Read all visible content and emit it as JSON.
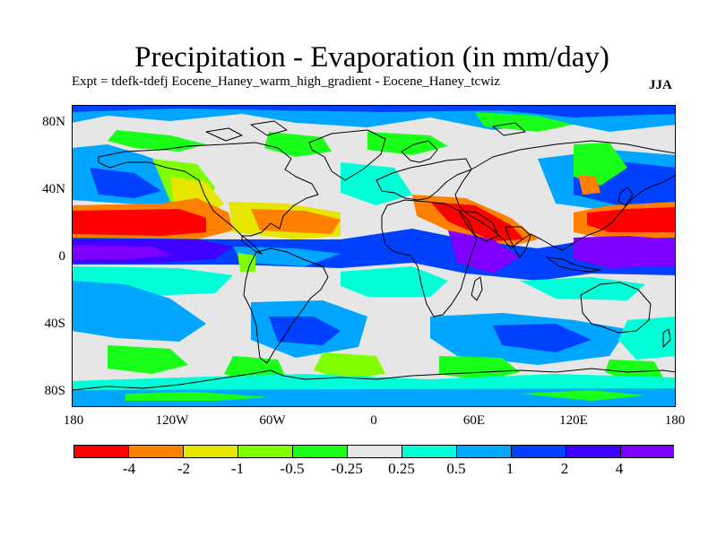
{
  "title": "Precipitation - Evaporation (in mm/day)",
  "subtitle": "Expt = tdefk-tdefj Eocene_Haney_warm_high_gradient - Eocene_Haney_tcwiz",
  "season": "JJA",
  "map": {
    "lat_ticks": [
      "80N",
      "40N",
      "0",
      "40S",
      "80S"
    ],
    "lon_ticks": [
      "180",
      "120W",
      "60W",
      "0",
      "60E",
      "120E",
      "180"
    ],
    "background_color": "#e6e6e6",
    "coastline_color": "#000000"
  },
  "colorbar": {
    "colors": [
      "#ff0000",
      "#ff8000",
      "#e6e600",
      "#80ff00",
      "#19ff19",
      "#e6e6e6",
      "#00ffd9",
      "#00a6ff",
      "#0040ff",
      "#4000ff",
      "#8000ff"
    ],
    "labels": [
      "-4",
      "-2",
      "-1",
      "-0.5",
      "-0.25",
      "0.25",
      "0.5",
      "1",
      "2",
      "4"
    ]
  }
}
